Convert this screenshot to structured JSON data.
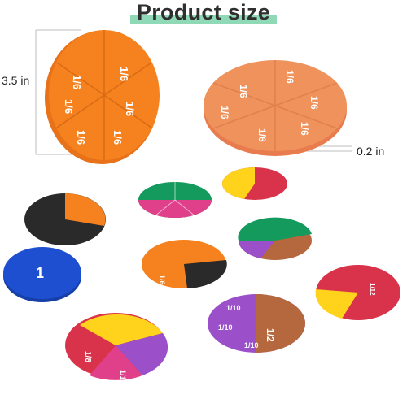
{
  "title": "Product size",
  "dimensions": {
    "diameter_label": "3.5 in",
    "thickness_label": "0.2 in"
  },
  "colors": {
    "title_highlight": "#8fd9b6",
    "orange": "#f5821f",
    "orange_light": "#f0925c",
    "black": "#2a2a2a",
    "blue": "#1f4fd1",
    "green": "#139a5c",
    "pink": "#e0408a",
    "purple": "#9b4fc9",
    "brown": "#b5683d",
    "yellow": "#ffd21c",
    "red": "#d8334a"
  },
  "pieces": {
    "sixth": "1/6",
    "half": "1/2",
    "tenth": "1/10",
    "eighth": "1/8",
    "twelfth": "1/12",
    "whole": "1"
  }
}
